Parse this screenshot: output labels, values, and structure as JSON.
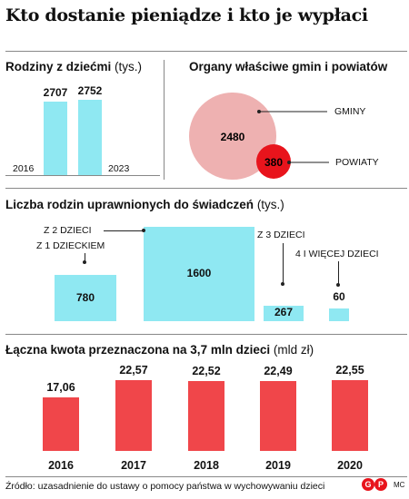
{
  "title": "Kto dostanie pieniądze i kto je wypłaci",
  "families": {
    "title": "Rodziny z dziećmi",
    "unit": "(tys.)",
    "year_start": "2016",
    "year_end": "2023"
  },
  "organs": {
    "title": "Organy właściwe gmin i powiatów",
    "gminy_label": "GMINY",
    "powiaty_label": "POWIATY"
  },
  "eligible": {
    "title": "Liczba rodzin uprawnionych do świadczeń",
    "unit": "(tys.)"
  },
  "total": {
    "title": "Łączna kwota przeznaczona na 3,7 mln dzieci",
    "unit": "(mld zł)"
  },
  "footer": {
    "source": "Źródło: uzasadnienie do ustawy o pomocy państwa w wychowywaniu dzieci",
    "author": "MC"
  },
  "colors": {
    "cyan": "#8fe8f2",
    "red": "#f0464a",
    "pink": "#eeb1b1",
    "powiaty_red": "#e8141c"
  },
  "chart_data": [
    {
      "type": "bar",
      "title": "Rodziny z dziećmi",
      "ylabel": "(tys.)",
      "categories": [
        "2016",
        "2023"
      ],
      "values": [
        2707,
        2752
      ]
    },
    {
      "type": "bubble",
      "title": "Organy właściwe gmin i powiatów",
      "categories": [
        "GMINY",
        "POWIATY"
      ],
      "values": [
        2480,
        380
      ]
    },
    {
      "type": "bar",
      "title": "Liczba rodzin uprawnionych do świadczeń",
      "ylabel": "(tys.)",
      "categories": [
        "Z 1 DZIECKIEM",
        "Z 2 DZIECI",
        "Z 3 DZIECI",
        "4 I WIĘCEJ DZIECI"
      ],
      "values": [
        780,
        1600,
        267,
        60
      ]
    },
    {
      "type": "bar",
      "title": "Łączna kwota przeznaczona na 3,7 mln dzieci",
      "ylabel": "(mld zł)",
      "categories": [
        "2016",
        "2017",
        "2018",
        "2019",
        "2020"
      ],
      "values": [
        17.06,
        22.57,
        22.52,
        22.49,
        22.55
      ],
      "value_labels": [
        "17,06",
        "22,57",
        "22,52",
        "22,49",
        "22,55"
      ]
    }
  ]
}
